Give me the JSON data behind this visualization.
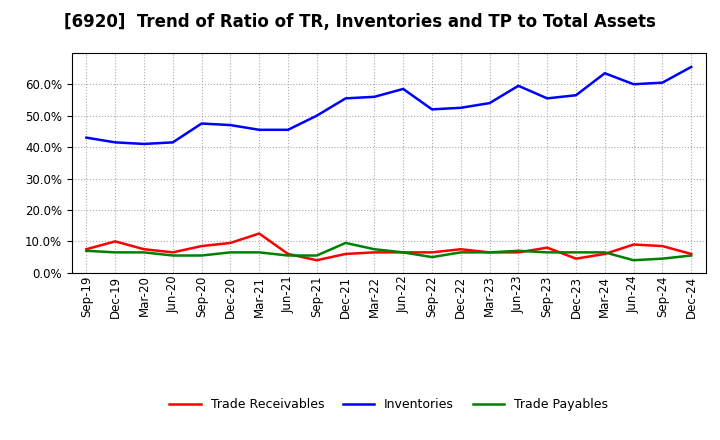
{
  "title": "[6920]  Trend of Ratio of TR, Inventories and TP to Total Assets",
  "x_labels": [
    "Sep-19",
    "Dec-19",
    "Mar-20",
    "Jun-20",
    "Sep-20",
    "Dec-20",
    "Mar-21",
    "Jun-21",
    "Sep-21",
    "Dec-21",
    "Mar-22",
    "Jun-22",
    "Sep-22",
    "Dec-22",
    "Mar-23",
    "Jun-23",
    "Sep-23",
    "Dec-23",
    "Mar-24",
    "Jun-24",
    "Sep-24",
    "Dec-24"
  ],
  "trade_receivables": [
    0.075,
    0.1,
    0.075,
    0.065,
    0.085,
    0.095,
    0.125,
    0.06,
    0.04,
    0.06,
    0.065,
    0.065,
    0.065,
    0.075,
    0.065,
    0.065,
    0.08,
    0.045,
    0.06,
    0.09,
    0.085,
    0.06
  ],
  "inventories": [
    0.43,
    0.415,
    0.41,
    0.415,
    0.475,
    0.47,
    0.455,
    0.455,
    0.5,
    0.555,
    0.56,
    0.585,
    0.52,
    0.525,
    0.54,
    0.595,
    0.555,
    0.565,
    0.635,
    0.6,
    0.605,
    0.655
  ],
  "trade_payables": [
    0.07,
    0.065,
    0.065,
    0.055,
    0.055,
    0.065,
    0.065,
    0.055,
    0.055,
    0.095,
    0.075,
    0.065,
    0.05,
    0.065,
    0.065,
    0.07,
    0.065,
    0.065,
    0.065,
    0.04,
    0.045,
    0.055
  ],
  "tr_color": "#ff0000",
  "inv_color": "#0000ff",
  "tp_color": "#008000",
  "bg_color": "#ffffff",
  "grid_color": "#aaaaaa",
  "ylim": [
    0.0,
    0.7
  ],
  "yticks": [
    0.0,
    0.1,
    0.2,
    0.3,
    0.4,
    0.5,
    0.6
  ],
  "legend_labels": [
    "Trade Receivables",
    "Inventories",
    "Trade Payables"
  ],
  "title_fontsize": 12,
  "axis_fontsize": 8.5,
  "legend_fontsize": 9,
  "line_width": 1.8
}
